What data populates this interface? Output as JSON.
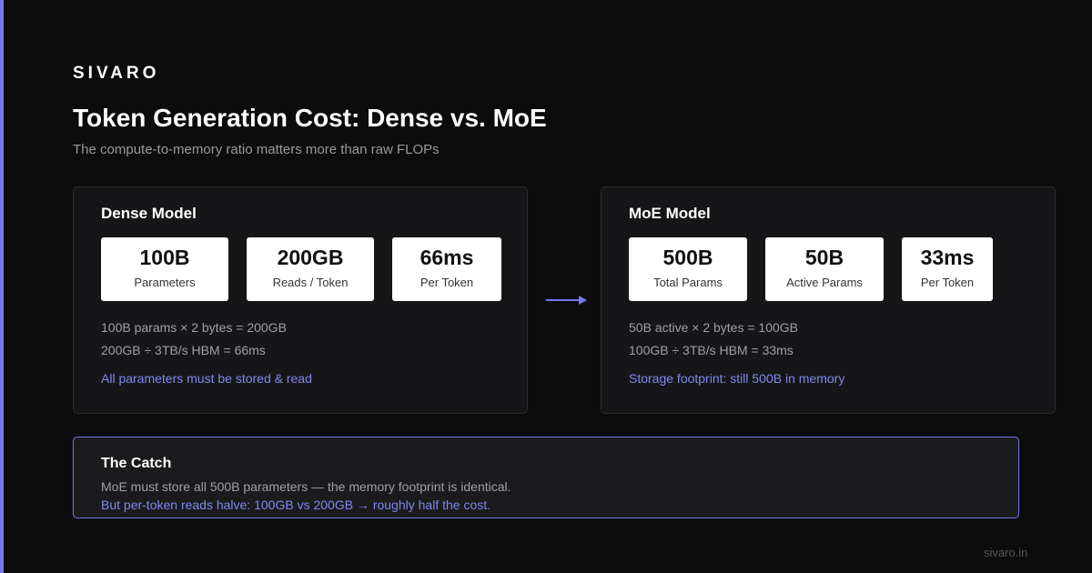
{
  "brand": "SIVARO",
  "title": "Token Generation Cost: Dense vs. MoE",
  "subtitle": "The compute-to-memory ratio matters more than raw FLOPs",
  "panels": [
    {
      "title": "Dense Model",
      "stats": [
        {
          "value": "100B",
          "label": "Parameters"
        },
        {
          "value": "200GB",
          "label": "Reads / Token"
        },
        {
          "value": "66ms",
          "label": "Per Token"
        }
      ],
      "lines": [
        "100B params × 2 bytes = 200GB",
        "200GB ÷ 3TB/s HBM = 66ms"
      ],
      "note": "All parameters must be stored & read"
    },
    {
      "title": "MoE Model",
      "stats": [
        {
          "value": "500B",
          "label": "Total Params"
        },
        {
          "value": "50B",
          "label": "Active Params"
        },
        {
          "value": "33ms",
          "label": "Per Token"
        }
      ],
      "lines": [
        "50B active × 2 bytes = 100GB",
        "100GB ÷ 3TB/s HBM = 33ms"
      ],
      "note": "Storage footprint: still 500B in memory"
    }
  ],
  "catch": {
    "title": "The Catch",
    "line": "MoE must store all 500B parameters — the memory footprint is identical.",
    "highlight": "But per-token reads halve: 100GB vs 200GB → roughly half the cost."
  },
  "footer": "sivaro.in"
}
